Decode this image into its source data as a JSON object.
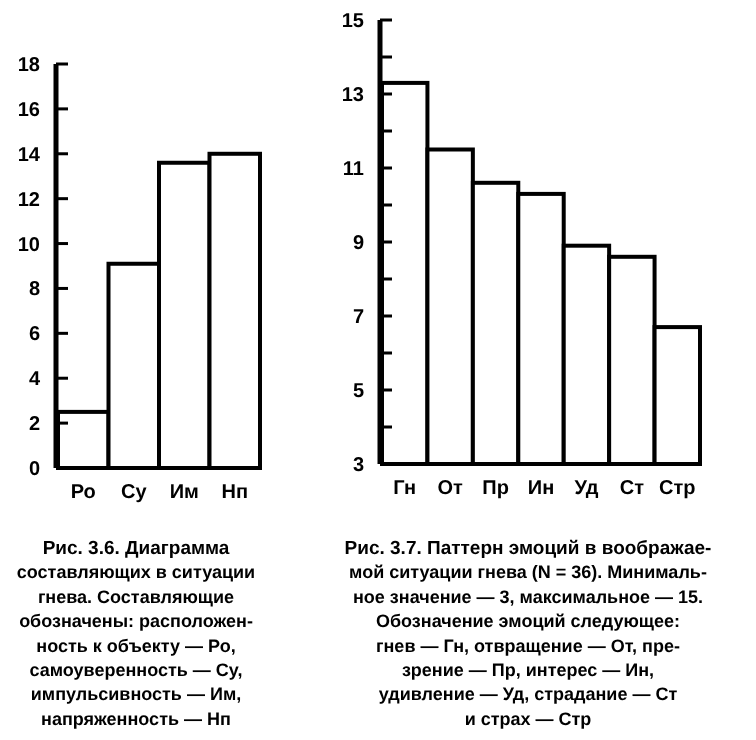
{
  "chart_data": [
    {
      "type": "bar",
      "categories": [
        "Ро",
        "Су",
        "Им",
        "Нп"
      ],
      "values": [
        2.5,
        9.1,
        13.6,
        14.0
      ],
      "color": "#ffffff",
      "ylim": [
        0,
        18
      ],
      "yticks": [
        0,
        2,
        4,
        6,
        8,
        10,
        12,
        14,
        16,
        18
      ],
      "grid": false,
      "annotations": [
        "Рис. 3.6. Диаграмма",
        "составляющих в ситуации",
        "гнева. Составляющие",
        "обозначены: расположен-",
        "ность к объекту — Ро,",
        "самоуверенность — Су,",
        "импульсивность — Им,",
        "напряженность — Нп"
      ]
    },
    {
      "type": "bar",
      "categories": [
        "Гн",
        "От",
        "Пр",
        "Ин",
        "Уд",
        "Ст",
        "Стр"
      ],
      "values": [
        13.3,
        11.5,
        10.6,
        10.3,
        8.9,
        8.6,
        6.7
      ],
      "color": "#ffffff",
      "ylim": [
        3,
        15
      ],
      "yticks": [
        3,
        {
          "value": 4,
          "label": null
        },
        5,
        {
          "value": 6,
          "label": null
        },
        7,
        {
          "value": 8,
          "label": null
        },
        9,
        {
          "value": 10,
          "label": null
        },
        11,
        {
          "value": 12,
          "label": null
        },
        13,
        {
          "value": 14,
          "label": null
        },
        15
      ],
      "grid": false,
      "annotations": [
        "Рис. 3.7. Паттерн эмоций в воображае-",
        "мой ситуации гнева (N = 36). Минималь-",
        "ное значение — 3, максимальное — 15.",
        "Обозначение эмоций следующее:",
        "гнев — Гн, отвращение — От, пре-",
        "зрение — Пр, интерес — Ин,",
        "удивление — Уд, страдание — Ст",
        "и страх — Стр"
      ]
    }
  ]
}
